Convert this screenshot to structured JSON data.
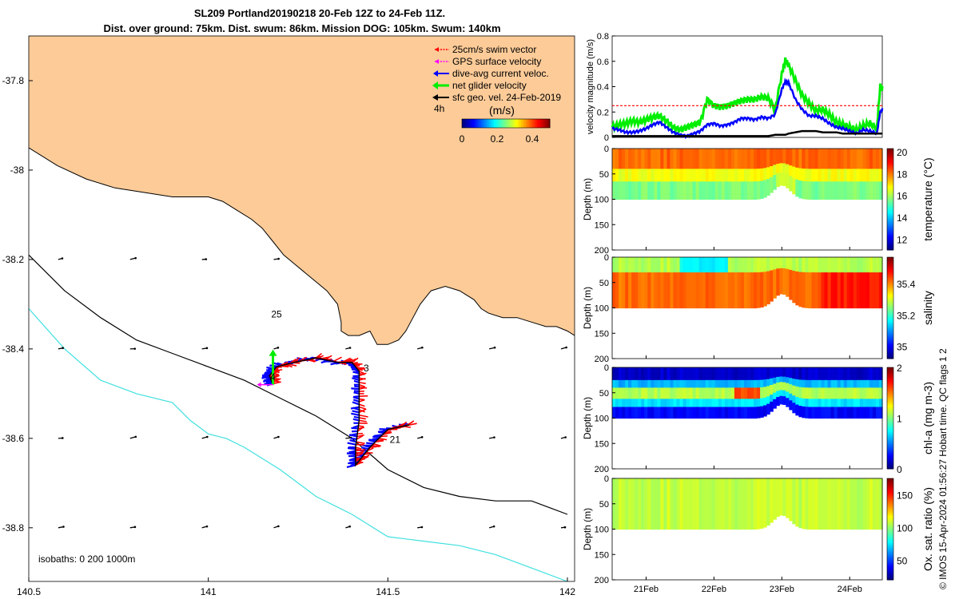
{
  "colors": {
    "land": "#fccb98",
    "coast": "#000000",
    "isobath_200": "#000000",
    "isobath_1000": "#40e0e0",
    "swim": "#ff0000",
    "gps": "#ff00ff",
    "dive_avg": "#0000ff",
    "net": "#00ee00",
    "geo": "#000000"
  },
  "chart_data": [
    {
      "id": "map",
      "type": "scatter",
      "title_line1": "SL209 Portland20190218 20-Feb 12Z to 24-Feb 11Z.",
      "title_line2": "Dist. over ground: 75km. Dist. swum: 86km. Mission DOG: 105km. Swum: 140km",
      "xlim": [
        140.5,
        142.02
      ],
      "ylim": [
        -38.92,
        -37.7
      ],
      "xticks": [
        140.5,
        141,
        141.5,
        142
      ],
      "xtick_labels": [
        "140.5",
        "141",
        "141.5",
        "142"
      ],
      "yticks": [
        -37.8,
        -38.0,
        -38.2,
        -38.4,
        -38.6,
        -38.8
      ],
      "ytick_labels": [
        "-37.8",
        "-38",
        "-38.2",
        "-38.4",
        "-38.6",
        "-38.8"
      ],
      "legend": [
        "25cm/s swim vector",
        "GPS surface velocity",
        "dive-avg current veloc.",
        "net glider velocity",
        "sfc geo. vel. 24-Feb-2019"
      ],
      "time_step_label": "4h",
      "colorbar": {
        "label": "(m/s)",
        "ticks": [
          0,
          0.2,
          0.4
        ],
        "tick_labels": [
          "0",
          "0.2",
          "0.4"
        ],
        "range": [
          0,
          0.5
        ]
      },
      "isobath_label": "isobaths: 0   200  1000m",
      "day_labels": [
        {
          "text": "25",
          "lon": 141.19,
          "lat": -38.33
        },
        {
          "text": "3",
          "lon": 141.44,
          "lat": -38.45
        },
        {
          "text": "4",
          "lon": 141.18,
          "lat": -38.47
        },
        {
          "text": "21",
          "lon": 141.52,
          "lat": -38.61
        }
      ],
      "coastline": [
        [
          140.5,
          -37.95
        ],
        [
          140.58,
          -37.99
        ],
        [
          140.66,
          -38.02
        ],
        [
          140.74,
          -38.04
        ],
        [
          140.82,
          -38.05
        ],
        [
          140.9,
          -38.06
        ],
        [
          140.96,
          -38.06
        ],
        [
          141.0,
          -38.06
        ],
        [
          141.04,
          -38.07
        ],
        [
          141.08,
          -38.09
        ],
        [
          141.12,
          -38.11
        ],
        [
          141.15,
          -38.13
        ],
        [
          141.18,
          -38.16
        ],
        [
          141.21,
          -38.19
        ],
        [
          141.24,
          -38.21
        ],
        [
          141.27,
          -38.23
        ],
        [
          141.3,
          -38.25
        ],
        [
          141.33,
          -38.27
        ],
        [
          141.36,
          -38.3
        ],
        [
          141.37,
          -38.34
        ],
        [
          141.37,
          -38.36
        ],
        [
          141.39,
          -38.37
        ],
        [
          141.42,
          -38.37
        ],
        [
          141.45,
          -38.36
        ],
        [
          141.47,
          -38.39
        ],
        [
          141.5,
          -38.39
        ],
        [
          141.53,
          -38.38
        ],
        [
          141.55,
          -38.36
        ],
        [
          141.57,
          -38.33
        ],
        [
          141.59,
          -38.3
        ],
        [
          141.62,
          -38.27
        ],
        [
          141.66,
          -38.26
        ],
        [
          141.7,
          -38.27
        ],
        [
          141.74,
          -38.29
        ],
        [
          141.76,
          -38.31
        ],
        [
          141.78,
          -38.32
        ],
        [
          141.82,
          -38.33
        ],
        [
          141.86,
          -38.33
        ],
        [
          141.9,
          -38.34
        ],
        [
          141.94,
          -38.35
        ],
        [
          141.97,
          -38.35
        ],
        [
          142.0,
          -38.36
        ],
        [
          142.02,
          -38.37
        ]
      ],
      "isobath_200": [
        [
          140.5,
          -38.19
        ],
        [
          140.6,
          -38.27
        ],
        [
          140.7,
          -38.33
        ],
        [
          140.8,
          -38.38
        ],
        [
          140.9,
          -38.41
        ],
        [
          141.0,
          -38.44
        ],
        [
          141.1,
          -38.47
        ],
        [
          141.2,
          -38.51
        ],
        [
          141.3,
          -38.55
        ],
        [
          141.4,
          -38.6
        ],
        [
          141.5,
          -38.67
        ],
        [
          141.6,
          -38.71
        ],
        [
          141.7,
          -38.73
        ],
        [
          141.8,
          -38.74
        ],
        [
          141.9,
          -38.74
        ],
        [
          142.0,
          -38.77
        ]
      ],
      "isobath_1000": [
        [
          140.5,
          -38.31
        ],
        [
          140.6,
          -38.4
        ],
        [
          140.7,
          -38.47
        ],
        [
          140.8,
          -38.5
        ],
        [
          140.9,
          -38.52
        ],
        [
          140.95,
          -38.56
        ],
        [
          141.0,
          -38.59
        ],
        [
          141.05,
          -38.6
        ],
        [
          141.1,
          -38.62
        ],
        [
          141.2,
          -38.67
        ],
        [
          141.3,
          -38.73
        ],
        [
          141.4,
          -38.77
        ],
        [
          141.5,
          -38.82
        ],
        [
          141.6,
          -38.83
        ],
        [
          141.7,
          -38.84
        ],
        [
          141.8,
          -38.86
        ],
        [
          141.9,
          -38.89
        ],
        [
          142.0,
          -38.92
        ]
      ],
      "glider_track": [
        [
          141.56,
          -38.57
        ],
        [
          141.5,
          -38.58
        ],
        [
          141.45,
          -38.62
        ],
        [
          141.41,
          -38.66
        ],
        [
          141.41,
          -38.62
        ],
        [
          141.42,
          -38.56
        ],
        [
          141.42,
          -38.5
        ],
        [
          141.42,
          -38.45
        ],
        [
          141.4,
          -38.43
        ],
        [
          141.36,
          -38.43
        ],
        [
          141.3,
          -38.42
        ],
        [
          141.24,
          -38.43
        ],
        [
          141.19,
          -38.44
        ],
        [
          141.17,
          -38.46
        ],
        [
          141.18,
          -38.48
        ]
      ]
    },
    {
      "id": "velocity",
      "type": "line",
      "ylabel": "velocity magnitude (m/s)",
      "ylim": [
        0,
        0.8
      ],
      "yticks": [
        0,
        0.2,
        0.4,
        0.6,
        0.8
      ],
      "ytick_labels": [
        "0",
        "0.2",
        "0.4",
        "0.6",
        "0.8"
      ],
      "x": [
        20.5,
        20.6,
        20.7,
        20.8,
        20.9,
        21.0,
        21.1,
        21.2,
        21.3,
        21.4,
        21.5,
        21.6,
        21.7,
        21.8,
        21.9,
        22.0,
        22.1,
        22.2,
        22.3,
        22.4,
        22.5,
        22.6,
        22.7,
        22.8,
        22.9,
        23.0,
        23.05,
        23.1,
        23.2,
        23.3,
        23.4,
        23.5,
        23.6,
        23.7,
        23.8,
        23.9,
        24.0,
        24.1,
        24.2,
        24.3,
        24.4,
        24.45,
        24.48
      ],
      "series": [
        {
          "name": "net glider velocity",
          "color": "#00ee00",
          "values": [
            0.08,
            0.1,
            0.11,
            0.13,
            0.12,
            0.14,
            0.16,
            0.17,
            0.13,
            0.08,
            0.06,
            0.08,
            0.1,
            0.12,
            0.3,
            0.25,
            0.24,
            0.25,
            0.27,
            0.29,
            0.3,
            0.3,
            0.32,
            0.31,
            0.22,
            0.5,
            0.61,
            0.57,
            0.45,
            0.33,
            0.27,
            0.21,
            0.22,
            0.18,
            0.12,
            0.1,
            0.08,
            0.06,
            0.09,
            0.11,
            0.07,
            0.4,
            0.38
          ]
        },
        {
          "name": "dive-avg current veloc.",
          "color": "#0000ff",
          "values": [
            0.07,
            0.06,
            0.04,
            0.04,
            0.05,
            0.07,
            0.1,
            0.12,
            0.08,
            0.04,
            0.02,
            0.01,
            0.03,
            0.05,
            0.1,
            0.11,
            0.09,
            0.1,
            0.12,
            0.15,
            0.15,
            0.14,
            0.16,
            0.15,
            0.18,
            0.38,
            0.44,
            0.43,
            0.3,
            0.22,
            0.17,
            0.17,
            0.15,
            0.11,
            0.08,
            0.07,
            0.05,
            0.03,
            0.06,
            0.05,
            0.03,
            0.2,
            0.22
          ]
        },
        {
          "name": "sfc geo. vel.",
          "color": "#000000",
          "values": [
            0.01,
            0.01,
            0.01,
            0.01,
            0.01,
            0.01,
            0.01,
            0.01,
            0.01,
            0.01,
            0.01,
            0.01,
            0.01,
            0.01,
            0.01,
            0.01,
            0.01,
            0.01,
            0.01,
            0.01,
            0.01,
            0.01,
            0.01,
            0.01,
            0.02,
            0.02,
            0.02,
            0.03,
            0.04,
            0.05,
            0.05,
            0.05,
            0.04,
            0.04,
            0.04,
            0.03,
            0.03,
            0.03,
            0.03,
            0.03,
            0.03,
            0.03,
            0.03
          ]
        },
        {
          "name": "25cm/s swim vector",
          "color": "#ff0000",
          "values": [
            0.25,
            0.25,
            0.25,
            0.25,
            0.25,
            0.25,
            0.25,
            0.25,
            0.25,
            0.25,
            0.25,
            0.25,
            0.25,
            0.25,
            0.25,
            0.25,
            0.25,
            0.25,
            0.25,
            0.25,
            0.25,
            0.25,
            0.25,
            0.25,
            0.25,
            0.25,
            0.25,
            0.25,
            0.25,
            0.25,
            0.25,
            0.25,
            0.25,
            0.25,
            0.25,
            0.25,
            0.25,
            0.25,
            0.25,
            0.25,
            0.25,
            0.25,
            0.25
          ]
        }
      ]
    },
    {
      "id": "temperature",
      "type": "heatmap",
      "ylabel": "Depth (m)",
      "ylim": [
        200,
        0
      ],
      "yticks": [
        0,
        50,
        100,
        150,
        200
      ],
      "ytick_labels": [
        "0",
        "50",
        "100",
        "150",
        "200"
      ],
      "colorbar_label": "temperature (°C)",
      "colorbar_range": [
        11,
        20.3
      ],
      "colorbar_ticks": [
        12,
        14,
        16,
        18,
        20
      ],
      "colorbar_tick_labels": [
        "12",
        "14",
        "16",
        "18",
        "20"
      ],
      "layers": [
        {
          "top": 0,
          "bottom": 40,
          "value": 18.2
        },
        {
          "top": 40,
          "bottom": 65,
          "value": 16.7
        },
        {
          "top": 65,
          "bottom": 100,
          "value": 15.6
        }
      ]
    },
    {
      "id": "salinity",
      "type": "heatmap",
      "ylabel": "Depth (m)",
      "ylim": [
        200,
        0
      ],
      "yticks": [
        0,
        50,
        100,
        150,
        200
      ],
      "ytick_labels": [
        "0",
        "50",
        "100",
        "150",
        "200"
      ],
      "colorbar_label": "salinity",
      "colorbar_range": [
        34.92,
        35.57
      ],
      "colorbar_ticks": [
        35.0,
        35.2,
        35.4
      ],
      "colorbar_tick_labels": [
        "35",
        "35.2",
        "35.4"
      ],
      "layers": [
        {
          "top": 0,
          "bottom": 30,
          "value": 35.28
        },
        {
          "top": 30,
          "bottom": 100,
          "value": 35.42
        }
      ]
    },
    {
      "id": "chla",
      "type": "heatmap",
      "ylabel": "Depth (m)",
      "ylim": [
        200,
        0
      ],
      "yticks": [
        0,
        50,
        100,
        150,
        200
      ],
      "ytick_labels": [
        "0",
        "50",
        "100",
        "150",
        "200"
      ],
      "colorbar_label": "chl-a (mg m-3)",
      "colorbar_range": [
        0,
        2
      ],
      "colorbar_ticks": [
        0,
        1,
        2
      ],
      "colorbar_tick_labels": [
        "0",
        "1",
        "2"
      ],
      "layers": [
        {
          "top": 0,
          "bottom": 25,
          "value": 0.15
        },
        {
          "top": 25,
          "bottom": 40,
          "value": 0.6
        },
        {
          "top": 40,
          "bottom": 62,
          "value": 1.1
        },
        {
          "top": 62,
          "bottom": 78,
          "value": 0.7
        },
        {
          "top": 78,
          "bottom": 100,
          "value": 0.25
        }
      ]
    },
    {
      "id": "oxygen",
      "type": "heatmap",
      "ylabel": "Depth (m)",
      "ylim": [
        200,
        0
      ],
      "yticks": [
        0,
        50,
        100,
        150,
        200
      ],
      "ytick_labels": [
        "0",
        "50",
        "100",
        "150",
        "200"
      ],
      "xticks": [
        21,
        22,
        23,
        24
      ],
      "xtick_labels": [
        "21Feb",
        "22Feb",
        "23Feb",
        "24Feb"
      ],
      "colorbar_label": "Ox. sat. ratio (%)",
      "colorbar_range": [
        20,
        175
      ],
      "colorbar_ticks": [
        50,
        100,
        150
      ],
      "colorbar_tick_labels": [
        "50",
        "100",
        "150"
      ],
      "layers": [
        {
          "top": 0,
          "bottom": 100,
          "value": 108
        }
      ]
    }
  ],
  "side_text": "© IMOS 15-Apr-2024 01:56:27 Hobart time. QC flags 1  2"
}
